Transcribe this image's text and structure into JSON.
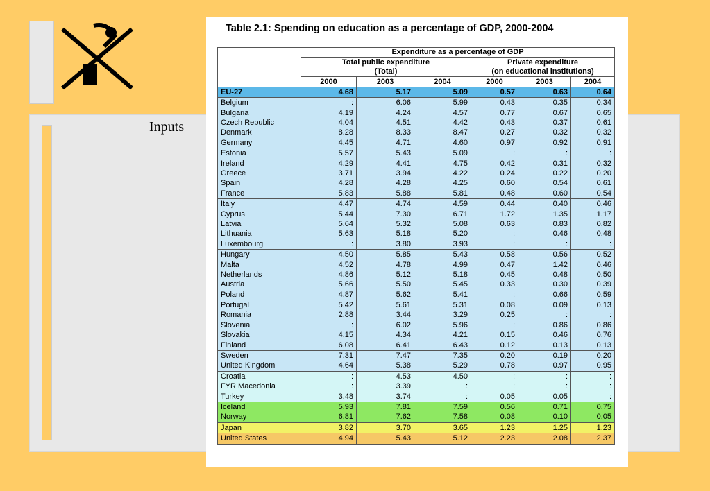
{
  "slide": {
    "label": "Inputs"
  },
  "table": {
    "title": "Table 2.1: Spending on education as a percentage of GDP, 2000-2004",
    "header": "Expenditure as a percentage of GDP",
    "group_public": [
      "Total public expenditure",
      "(Total)"
    ],
    "group_private": [
      "Private expenditure",
      "(on educational institutions)"
    ],
    "years": [
      "2000",
      "2003",
      "2004",
      "2000",
      "2003",
      "2004"
    ],
    "rows": [
      [
        "EU-27",
        "4.68",
        "5.17",
        "5.09",
        "0.57",
        "0.63",
        "0.64"
      ],
      [
        "Belgium",
        ":",
        "6.06",
        "5.99",
        "0.43",
        "0.35",
        "0.34"
      ],
      [
        "Bulgaria",
        "4.19",
        "4.24",
        "4.57",
        "0.77",
        "0.67",
        "0.65"
      ],
      [
        "Czech Republic",
        "4.04",
        "4.51",
        "4.42",
        "0.43",
        "0.37",
        "0.61"
      ],
      [
        "Denmark",
        "8.28",
        "8.33",
        "8.47",
        "0.27",
        "0.32",
        "0.32"
      ],
      [
        "Germany",
        "4.45",
        "4.71",
        "4.60",
        "0.97",
        "0.92",
        "0.91"
      ],
      [
        "Estonia",
        "5.57",
        "5.43",
        "5.09",
        ":",
        ":",
        ":"
      ],
      [
        "Ireland",
        "4.29",
        "4.41",
        "4.75",
        "0.42",
        "0.31",
        "0.32"
      ],
      [
        "Greece",
        "3.71",
        "3.94",
        "4.22",
        "0.24",
        "0.22",
        "0.20"
      ],
      [
        "Spain",
        "4.28",
        "4.28",
        "4.25",
        "0.60",
        "0.54",
        "0.61"
      ],
      [
        "France",
        "5.83",
        "5.88",
        "5.81",
        "0.48",
        "0.60",
        "0.54"
      ],
      [
        "Italy",
        "4.47",
        "4.74",
        "4.59",
        "0.44",
        "0.40",
        "0.46"
      ],
      [
        "Cyprus",
        "5.44",
        "7.30",
        "6.71",
        "1.72",
        "1.35",
        "1.17"
      ],
      [
        "Latvia",
        "5.64",
        "5.32",
        "5.08",
        "0.63",
        "0.83",
        "0.82"
      ],
      [
        "Lithuania",
        "5.63",
        "5.18",
        "5.20",
        ":",
        "0.46",
        "0.48"
      ],
      [
        "Luxembourg",
        ":",
        "3.80",
        "3.93",
        ":",
        ":",
        ":"
      ],
      [
        "Hungary",
        "4.50",
        "5.85",
        "5.43",
        "0.58",
        "0.56",
        "0.52"
      ],
      [
        "Malta",
        "4.52",
        "4.78",
        "4.99",
        "0.47",
        "1.42",
        "0.46"
      ],
      [
        "Netherlands",
        "4.86",
        "5.12",
        "5.18",
        "0.45",
        "0.48",
        "0.50"
      ],
      [
        "Austria",
        "5.66",
        "5.50",
        "5.45",
        "0.33",
        "0.30",
        "0.39"
      ],
      [
        "Poland",
        "4.87",
        "5.62",
        "5.41",
        ":",
        "0.66",
        "0.59"
      ],
      [
        "Portugal",
        "5.42",
        "5.61",
        "5.31",
        "0.08",
        "0.09",
        "0.13"
      ],
      [
        "Romania",
        "2.88",
        "3.44",
        "3.29",
        "0.25",
        ":",
        ":"
      ],
      [
        "Slovenia",
        ":",
        "6.02",
        "5.96",
        ":",
        "0.86",
        "0.86"
      ],
      [
        "Slovakia",
        "4.15",
        "4.34",
        "4.21",
        "0.15",
        "0.46",
        "0.76"
      ],
      [
        "Finland",
        "6.08",
        "6.41",
        "6.43",
        "0.12",
        "0.13",
        "0.13"
      ],
      [
        "Sweden",
        "7.31",
        "7.47",
        "7.35",
        "0.20",
        "0.19",
        "0.20"
      ],
      [
        "United Kingdom",
        "4.64",
        "5.38",
        "5.29",
        "0.78",
        "0.97",
        "0.95"
      ],
      [
        "Croatia",
        ":",
        "4.53",
        "4.50",
        ":",
        ":",
        ":"
      ],
      [
        "FYR Macedonia",
        ":",
        "3.39",
        ":",
        ":",
        ":",
        ":"
      ],
      [
        "Turkey",
        "3.48",
        "3.74",
        ":",
        "0.05",
        "0.05",
        ":"
      ],
      [
        "Iceland",
        "5.93",
        "7.81",
        "7.59",
        "0.56",
        "0.71",
        "0.75"
      ],
      [
        "Norway",
        "6.81",
        "7.62",
        "7.58",
        "0.08",
        "0.10",
        "0.05"
      ],
      [
        "Japan",
        "3.82",
        "3.70",
        "3.65",
        "1.23",
        "1.25",
        "1.23"
      ],
      [
        "United States",
        "4.94",
        "5.43",
        "5.12",
        "2.23",
        "2.08",
        "2.37"
      ]
    ]
  }
}
